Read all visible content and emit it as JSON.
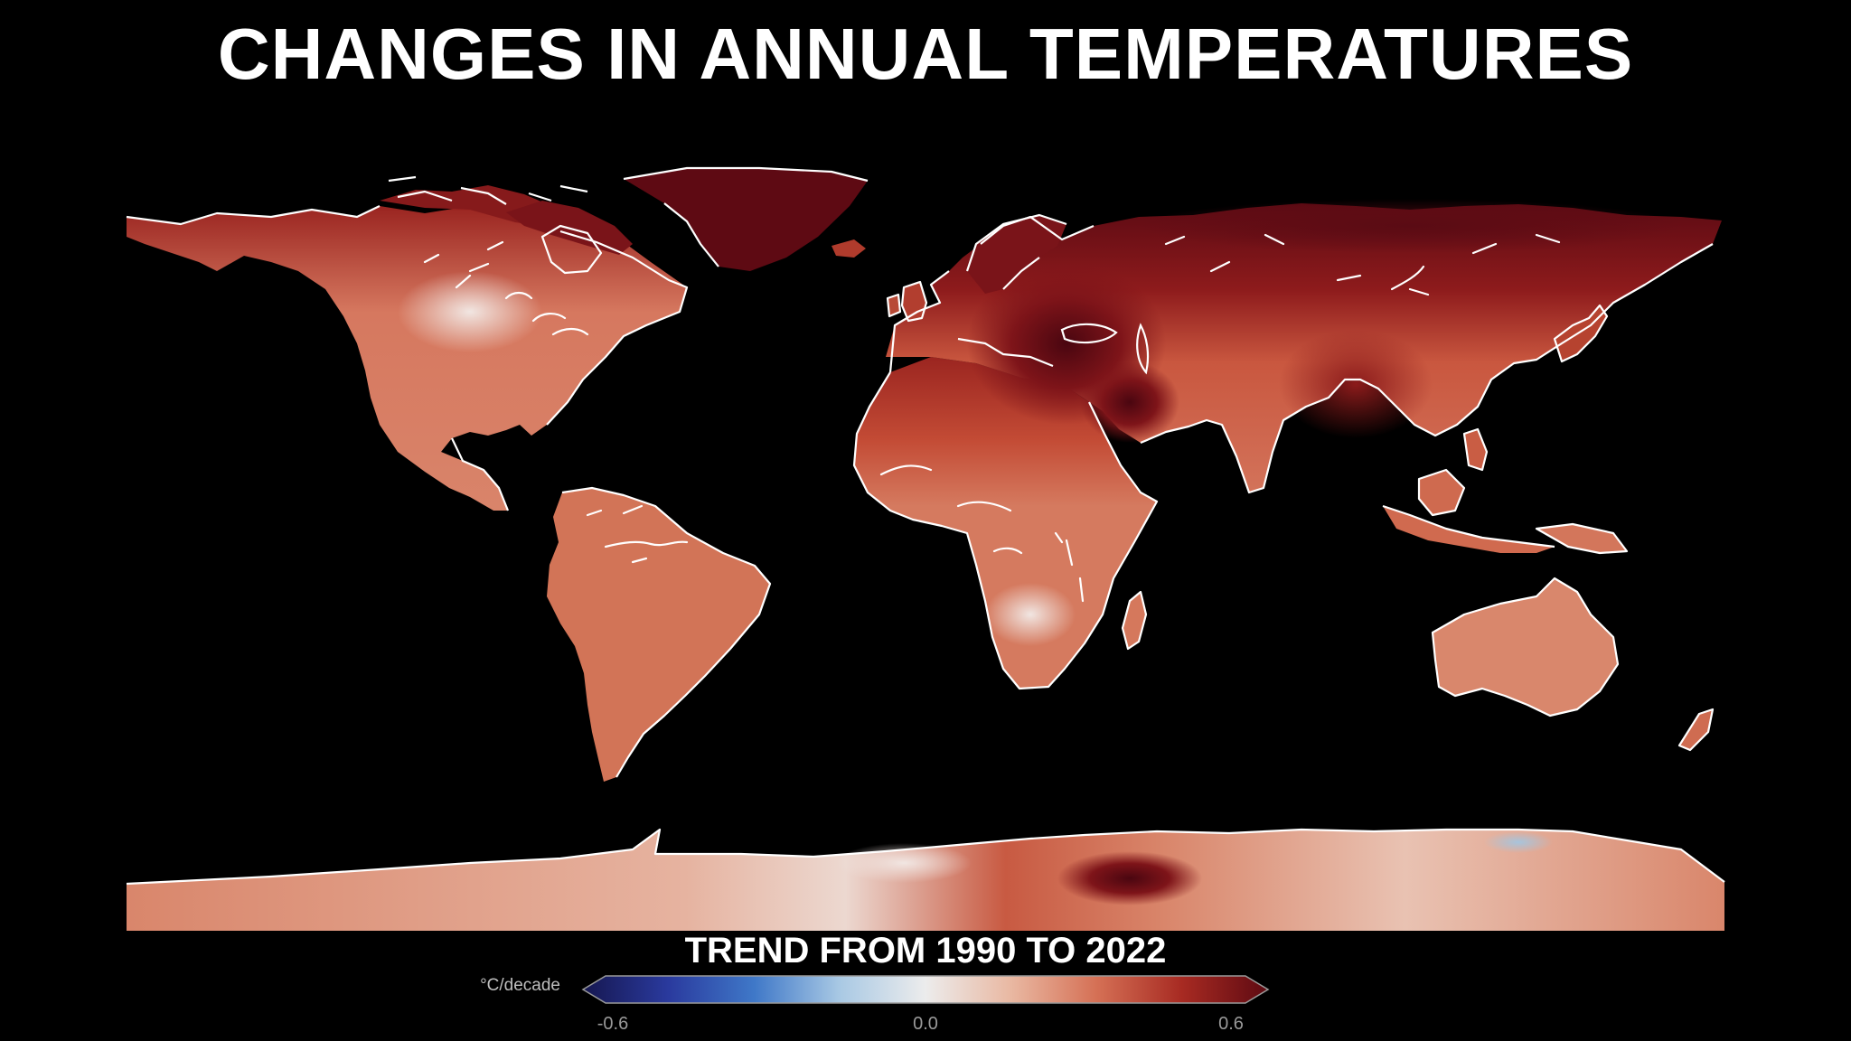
{
  "title": "CHANGES IN ANNUAL TEMPERATURES",
  "legend": {
    "title": "TREND FROM 1990 TO 2022",
    "unit": "°C/decade",
    "ticks": [
      "-0.6",
      "0.0",
      "0.6"
    ],
    "range": [
      -0.6,
      0.6
    ],
    "colors": [
      "#161750",
      "#2a3a9e",
      "#3f78c8",
      "#a9c9e4",
      "#ececec",
      "#e9b8a2",
      "#d57055",
      "#a72a22",
      "#5e0a12"
    ]
  },
  "map": {
    "projection": "equirectangular",
    "background": "#000000",
    "coastline_color": "#ffffff"
  }
}
